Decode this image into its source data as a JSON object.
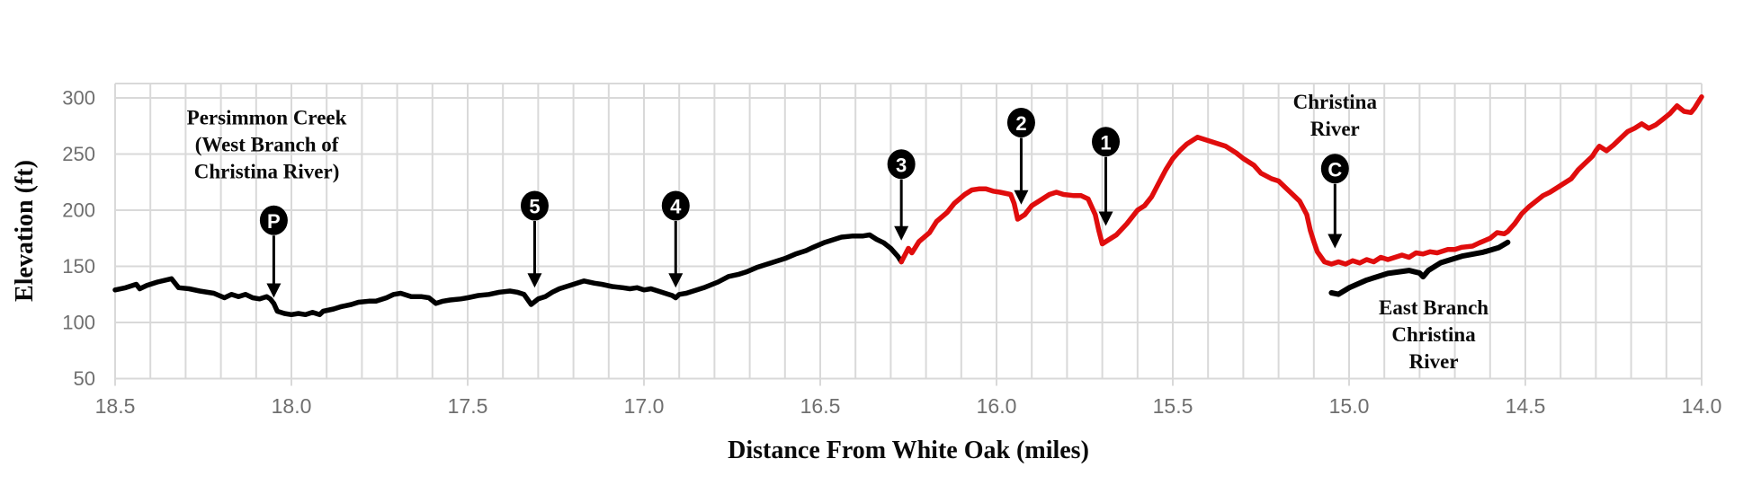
{
  "chart_data": {
    "type": "line",
    "title": "",
    "xlabel": "Distance From White Oak (miles)",
    "ylabel": "Elevation (ft)",
    "legend": "none",
    "grid": "on",
    "x_axis": {
      "min": 14.0,
      "max": 18.5,
      "reversed": true,
      "major_tick": 0.5,
      "minor_grid": 0.1,
      "tick_labels": [
        "18.5",
        "18.0",
        "17.5",
        "17.0",
        "16.5",
        "16.0",
        "15.5",
        "15.0",
        "14.5",
        "14.0"
      ]
    },
    "y_axis": {
      "min": 50,
      "max": 313,
      "grid_step": 50,
      "ticks": [
        300,
        250,
        200,
        150,
        100,
        50
      ]
    },
    "colors": {
      "grid": "#d9d9d9",
      "tick_label": "#6f6f6f",
      "black_segment": "#000000",
      "red_segment": "#e00d0d",
      "marker_fill": "#000000",
      "marker_text": "#ffffff",
      "annotation_text": "#0a0a0a"
    },
    "series": [
      {
        "name": "black-segment",
        "color_key": "black_segment",
        "points": [
          [
            18.5,
            129
          ],
          [
            18.47,
            131
          ],
          [
            18.44,
            134
          ],
          [
            18.43,
            130
          ],
          [
            18.41,
            133
          ],
          [
            18.38,
            136
          ],
          [
            18.34,
            139
          ],
          [
            18.32,
            131
          ],
          [
            18.29,
            130
          ],
          [
            18.26,
            128
          ],
          [
            18.22,
            126
          ],
          [
            18.19,
            122
          ],
          [
            18.17,
            125
          ],
          [
            18.15,
            123
          ],
          [
            18.13,
            125
          ],
          [
            18.11,
            122
          ],
          [
            18.09,
            121
          ],
          [
            18.07,
            123
          ],
          [
            18.06,
            121
          ],
          [
            18.05,
            117
          ],
          [
            18.04,
            110
          ],
          [
            18.02,
            108
          ],
          [
            18.0,
            107
          ],
          [
            17.98,
            108
          ],
          [
            17.96,
            107
          ],
          [
            17.94,
            109
          ],
          [
            17.92,
            107
          ],
          [
            17.91,
            110
          ],
          [
            17.88,
            112
          ],
          [
            17.86,
            114
          ],
          [
            17.83,
            116
          ],
          [
            17.81,
            118
          ],
          [
            17.78,
            119
          ],
          [
            17.76,
            119
          ],
          [
            17.73,
            122
          ],
          [
            17.71,
            125
          ],
          [
            17.69,
            126
          ],
          [
            17.66,
            123
          ],
          [
            17.63,
            123
          ],
          [
            17.61,
            122
          ],
          [
            17.59,
            117
          ],
          [
            17.57,
            119
          ],
          [
            17.55,
            120
          ],
          [
            17.52,
            121
          ],
          [
            17.5,
            122
          ],
          [
            17.47,
            124
          ],
          [
            17.44,
            125
          ],
          [
            17.41,
            127
          ],
          [
            17.38,
            128
          ],
          [
            17.36,
            127
          ],
          [
            17.34,
            125
          ],
          [
            17.32,
            116
          ],
          [
            17.3,
            121
          ],
          [
            17.28,
            123
          ],
          [
            17.26,
            127
          ],
          [
            17.24,
            130
          ],
          [
            17.21,
            133
          ],
          [
            17.19,
            135
          ],
          [
            17.17,
            137
          ],
          [
            17.14,
            135
          ],
          [
            17.12,
            134
          ],
          [
            17.09,
            132
          ],
          [
            17.06,
            131
          ],
          [
            17.04,
            130
          ],
          [
            17.02,
            131
          ],
          [
            17.0,
            129
          ],
          [
            16.98,
            130
          ],
          [
            16.96,
            128
          ],
          [
            16.94,
            126
          ],
          [
            16.92,
            124
          ],
          [
            16.91,
            122
          ],
          [
            16.9,
            125
          ],
          [
            16.88,
            126
          ],
          [
            16.85,
            129
          ],
          [
            16.83,
            131
          ],
          [
            16.79,
            136
          ],
          [
            16.76,
            141
          ],
          [
            16.73,
            143
          ],
          [
            16.71,
            145
          ],
          [
            16.68,
            149
          ],
          [
            16.65,
            152
          ],
          [
            16.62,
            155
          ],
          [
            16.6,
            157
          ],
          [
            16.57,
            161
          ],
          [
            16.54,
            164
          ],
          [
            16.52,
            167
          ],
          [
            16.49,
            171
          ],
          [
            16.46,
            174
          ],
          [
            16.44,
            176
          ],
          [
            16.41,
            177
          ],
          [
            16.38,
            177
          ],
          [
            16.36,
            178
          ],
          [
            16.34,
            174
          ],
          [
            16.32,
            171
          ],
          [
            16.3,
            166
          ],
          [
            16.28,
            159
          ],
          [
            16.27,
            154
          ]
        ]
      },
      {
        "name": "red-segment",
        "color_key": "red_segment",
        "points": [
          [
            16.27,
            154
          ],
          [
            16.26,
            160
          ],
          [
            16.25,
            166
          ],
          [
            16.24,
            162
          ],
          [
            16.22,
            172
          ],
          [
            16.19,
            180
          ],
          [
            16.17,
            190
          ],
          [
            16.14,
            198
          ],
          [
            16.12,
            206
          ],
          [
            16.09,
            214
          ],
          [
            16.07,
            218
          ],
          [
            16.05,
            219
          ],
          [
            16.03,
            219
          ],
          [
            16.01,
            217
          ],
          [
            15.99,
            216
          ],
          [
            15.96,
            214
          ],
          [
            15.95,
            206
          ],
          [
            15.94,
            192
          ],
          [
            15.92,
            196
          ],
          [
            15.9,
            204
          ],
          [
            15.87,
            210
          ],
          [
            15.85,
            214
          ],
          [
            15.83,
            216
          ],
          [
            15.81,
            214
          ],
          [
            15.78,
            213
          ],
          [
            15.76,
            213
          ],
          [
            15.74,
            210
          ],
          [
            15.72,
            196
          ],
          [
            15.71,
            182
          ],
          [
            15.7,
            170
          ],
          [
            15.68,
            174
          ],
          [
            15.66,
            178
          ],
          [
            15.63,
            188
          ],
          [
            15.6,
            200
          ],
          [
            15.58,
            204
          ],
          [
            15.56,
            212
          ],
          [
            15.54,
            224
          ],
          [
            15.52,
            236
          ],
          [
            15.5,
            246
          ],
          [
            15.48,
            253
          ],
          [
            15.46,
            259
          ],
          [
            15.43,
            265
          ],
          [
            15.41,
            263
          ],
          [
            15.38,
            260
          ],
          [
            15.35,
            257
          ],
          [
            15.32,
            251
          ],
          [
            15.3,
            246
          ],
          [
            15.27,
            240
          ],
          [
            15.25,
            233
          ],
          [
            15.22,
            228
          ],
          [
            15.2,
            226
          ],
          [
            15.18,
            220
          ],
          [
            15.16,
            214
          ],
          [
            15.14,
            208
          ],
          [
            15.12,
            196
          ],
          [
            15.11,
            182
          ],
          [
            15.1,
            172
          ],
          [
            15.09,
            163
          ],
          [
            15.07,
            154
          ],
          [
            15.05,
            152
          ],
          [
            15.03,
            154
          ],
          [
            15.01,
            152
          ],
          [
            14.99,
            155
          ],
          [
            14.97,
            153
          ],
          [
            14.95,
            156
          ],
          [
            14.93,
            154
          ],
          [
            14.91,
            158
          ],
          [
            14.89,
            156
          ],
          [
            14.87,
            158
          ],
          [
            14.85,
            160
          ],
          [
            14.83,
            158
          ],
          [
            14.81,
            162
          ],
          [
            14.79,
            161
          ],
          [
            14.77,
            163
          ],
          [
            14.75,
            162
          ],
          [
            14.72,
            165
          ],
          [
            14.7,
            165
          ],
          [
            14.68,
            167
          ],
          [
            14.65,
            168
          ],
          [
            14.63,
            171
          ],
          [
            14.6,
            175
          ],
          [
            14.58,
            180
          ],
          [
            14.56,
            179
          ],
          [
            14.55,
            181
          ],
          [
            14.53,
            188
          ],
          [
            14.51,
            197
          ],
          [
            14.49,
            203
          ],
          [
            14.47,
            208
          ],
          [
            14.45,
            213
          ],
          [
            14.43,
            216
          ],
          [
            14.41,
            220
          ],
          [
            14.39,
            224
          ],
          [
            14.37,
            228
          ],
          [
            14.35,
            236
          ],
          [
            14.33,
            242
          ],
          [
            14.31,
            248
          ],
          [
            14.3,
            253
          ],
          [
            14.29,
            257
          ],
          [
            14.27,
            253
          ],
          [
            14.25,
            258
          ],
          [
            14.23,
            264
          ],
          [
            14.21,
            270
          ],
          [
            14.19,
            273
          ],
          [
            14.17,
            277
          ],
          [
            14.15,
            273
          ],
          [
            14.13,
            276
          ],
          [
            14.11,
            281
          ],
          [
            14.09,
            286
          ],
          [
            14.07,
            293
          ],
          [
            14.05,
            288
          ],
          [
            14.03,
            287
          ],
          [
            14.02,
            291
          ],
          [
            14.01,
            296
          ],
          [
            14.0,
            301
          ]
        ]
      }
    ],
    "markers": [
      {
        "label": "P",
        "mile": 18.05,
        "circle_elev": 191,
        "tip_elev": 122
      },
      {
        "label": "5",
        "mile": 17.31,
        "circle_elev": 204,
        "tip_elev": 131
      },
      {
        "label": "4",
        "mile": 16.91,
        "circle_elev": 204,
        "tip_elev": 131
      },
      {
        "label": "3",
        "mile": 16.27,
        "circle_elev": 241,
        "tip_elev": 173
      },
      {
        "label": "2",
        "mile": 15.93,
        "circle_elev": 278,
        "tip_elev": 205
      },
      {
        "label": "1",
        "mile": 15.69,
        "circle_elev": 261,
        "tip_elev": 186
      },
      {
        "label": "C",
        "mile": 15.04,
        "circle_elev": 237,
        "tip_elev": 166
      }
    ],
    "annotations": [
      {
        "id": "persimmon-creek-label",
        "mile": 18.07,
        "elev": 258,
        "lines": [
          "Persimmon Creek",
          "(West Branch of",
          "Christina River)"
        ]
      },
      {
        "id": "christina-river-label",
        "mile": 15.04,
        "elev": 284,
        "lines": [
          "Christina",
          "River"
        ]
      },
      {
        "id": "east-branch-label",
        "mile": 14.76,
        "elev": 89,
        "lines": [
          "East Branch",
          "Christina",
          "River"
        ]
      }
    ],
    "brace": {
      "from_mile": 15.05,
      "from_elev": 132,
      "to_mile": 14.55,
      "to_elev": 161
    }
  }
}
